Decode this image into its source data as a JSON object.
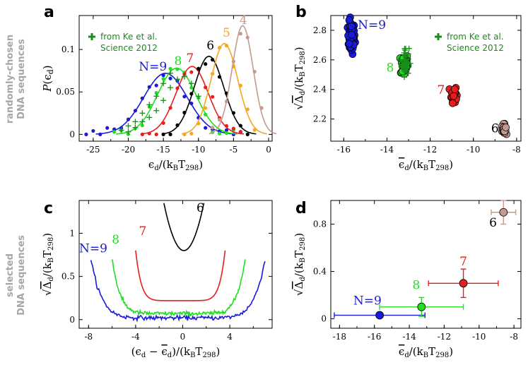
{
  "side_labels": {
    "top": [
      "randomly-chosen",
      "DNA sequences"
    ],
    "bottom": [
      "selected",
      "DNA sequences"
    ]
  },
  "colors": {
    "N9": "#1a1adb",
    "N8": "#22dd22",
    "N7": "#e61e1e",
    "N6": "#000000",
    "N5": "#f5a623",
    "N4": "#c49a8f",
    "ke": "#1a8c1a"
  },
  "chart_data": [
    {
      "panel": "a",
      "type": "line",
      "xlabel": "ϵd/(kBT298)",
      "ylabel": "P(ϵd)",
      "xlim": [
        -27,
        0.5
      ],
      "ylim": [
        -0.008,
        0.14
      ],
      "xticks": [
        -25,
        -20,
        -15,
        -10,
        -5,
        0
      ],
      "yticks": [
        0,
        0.05,
        0.1
      ],
      "ytick_labels": [
        "0",
        "0.05",
        "0.1"
      ],
      "legend": {
        "marker": "+",
        "text": [
          "from Ke et al.",
          "Science 2012"
        ]
      },
      "series": [
        {
          "name": "N=9",
          "color_key": "N9",
          "mu": -14.7,
          "sigma": 3.1,
          "amp": 0.072,
          "points_x": [
            -26,
            -25,
            -24,
            -23,
            -22,
            -21,
            -20,
            -19,
            -18,
            -17,
            -16,
            -15,
            -14,
            -13,
            -12,
            -11,
            -10,
            -9,
            -8,
            -7,
            -6,
            -5,
            -4
          ]
        },
        {
          "name": "8",
          "color_key": "N8",
          "mu": -13.1,
          "sigma": 2.7,
          "amp": 0.078,
          "points_x": [
            -22,
            -21,
            -20,
            -19,
            -18,
            -17,
            -16,
            -15,
            -14,
            -13,
            -12,
            -11,
            -10,
            -9,
            -8,
            -7,
            -6,
            -5
          ]
        },
        {
          "name": "7",
          "color_key": "N7",
          "mu": -10.9,
          "sigma": 2.3,
          "amp": 0.08,
          "points_x": [
            -18,
            -17,
            -16,
            -15,
            -14,
            -13,
            -12,
            -11,
            -10,
            -9,
            -8,
            -7,
            -6,
            -5,
            -4
          ]
        },
        {
          "name": "6",
          "color_key": "N6",
          "mu": -8.5,
          "sigma": 2.1,
          "amp": 0.092,
          "points_x": [
            -15,
            -14,
            -13,
            -12,
            -11,
            -10,
            -9,
            -8,
            -7,
            -6,
            -5,
            -4,
            -3
          ]
        },
        {
          "name": "5",
          "color_key": "N5",
          "mu": -6.3,
          "sigma": 1.9,
          "amp": 0.107,
          "points_x": [
            -12,
            -11,
            -10,
            -9,
            -8,
            -7,
            -6,
            -5,
            -4,
            -3,
            -2
          ]
        },
        {
          "name": "4",
          "color_key": "N4",
          "mu": -3.7,
          "sigma": 1.5,
          "amp": 0.128,
          "points_x": [
            -8,
            -7,
            -6,
            -5,
            -4,
            -3,
            -2,
            -1
          ]
        }
      ],
      "ke_data": [
        {
          "color_key": "N9",
          "x": [
            -21,
            -20,
            -19,
            -18,
            -17,
            -16,
            -15,
            -14
          ],
          "y": [
            0.005,
            0.01,
            0.015,
            0.025,
            0.035,
            0.045,
            0.06,
            0.072
          ]
        },
        {
          "color_key": "N8",
          "x": [
            -20,
            -19,
            -18,
            -17,
            -16,
            -15,
            -14,
            -13,
            -12,
            -11,
            -10
          ],
          "y": [
            0.003,
            0.008,
            0.015,
            0.02,
            0.028,
            0.04,
            0.055,
            0.065,
            0.068,
            0.06,
            0.045
          ]
        }
      ]
    },
    {
      "panel": "b",
      "type": "scatter",
      "xlabel": "ϵd/(kBT298)",
      "ylabel": "Δd/(kBT298)",
      "xlim": [
        -16.6,
        -7.8
      ],
      "ylim": [
        2.05,
        2.9
      ],
      "xticks": [
        -16,
        -14,
        -12,
        -10,
        -8
      ],
      "yticks": [
        2.2,
        2.4,
        2.6,
        2.8
      ],
      "ytick_labels": [
        "2.2",
        "2.4",
        "2.6",
        "2.8"
      ],
      "legend": {
        "marker": "+",
        "text": [
          "from Ke et al.",
          "Science 2012"
        ]
      },
      "clusters": [
        {
          "name": "N=9",
          "color_key": "N9",
          "x": -15.65,
          "y": 2.75,
          "spread_x": 0.14,
          "spread_y": 0.1,
          "count": 60
        },
        {
          "name": "8",
          "color_key": "N8",
          "x": -13.2,
          "y": 2.57,
          "spread_x": 0.14,
          "spread_y": 0.07,
          "count": 50
        },
        {
          "name": "7",
          "color_key": "N7",
          "x": -10.9,
          "y": 2.37,
          "spread_x": 0.1,
          "spread_y": 0.05,
          "count": 40
        },
        {
          "name": "6",
          "color_key": "N4",
          "x": -8.6,
          "y": 2.13,
          "spread_x": 0.08,
          "spread_y": 0.03,
          "count": 25
        }
      ],
      "ke_points": {
        "x": -13.15,
        "y": 2.59,
        "spread_x": 0.14,
        "spread_y": 0.1,
        "count": 40
      }
    },
    {
      "panel": "c",
      "type": "line",
      "xlabel": "(ϵd − ϵd)/(kBT298)",
      "ylabel": "Δd/(kBT298)",
      "xlim": [
        -8.8,
        7.6
      ],
      "ylim": [
        -0.1,
        1.38
      ],
      "xticks": [
        -8,
        -4,
        0,
        4
      ],
      "yticks": [
        0,
        0.5,
        1
      ],
      "ytick_labels": [
        "0",
        "0.5",
        "1"
      ],
      "series": [
        {
          "name": "N=9",
          "color_key": "N9",
          "x_range": [
            -7.8,
            7.0
          ],
          "y_min": 0.02,
          "y_edge": 0.7
        },
        {
          "name": "8",
          "color_key": "N8",
          "x_range": [
            -6.0,
            5.3
          ],
          "y_min": 0.07,
          "y_edge": 0.7
        },
        {
          "name": "7",
          "color_key": "N7",
          "x_range": [
            -4.0,
            3.6
          ],
          "y_min": 0.22,
          "y_edge": 0.8
        },
        {
          "name": "6",
          "color_key": "N6",
          "x_range": [
            -1.6,
            1.8
          ],
          "y_min": 0.8,
          "y_edge": 1.35
        }
      ]
    },
    {
      "panel": "d",
      "type": "scatter",
      "xlabel": "ϵd/(kBT298)",
      "ylabel": "Δd/(kBT298)",
      "xlim": [
        -18.5,
        -7.6
      ],
      "ylim": [
        -0.08,
        1.0
      ],
      "xticks": [
        -18,
        -16,
        -14,
        -12,
        -10,
        -8
      ],
      "yticks": [
        0,
        0.4,
        0.8
      ],
      "ytick_labels": [
        "0",
        "0.4",
        "0.8"
      ],
      "points": [
        {
          "name": "N=9",
          "color_key": "N9",
          "x": -15.7,
          "y": 0.03,
          "xerr": 2.6,
          "yerr": 0.02
        },
        {
          "name": "8",
          "color_key": "N8",
          "x": -13.3,
          "y": 0.1,
          "xerr": 2.4,
          "yerr": 0.08
        },
        {
          "name": "7",
          "color_key": "N7",
          "x": -10.9,
          "y": 0.3,
          "xerr": 2.0,
          "yerr": 0.12
        },
        {
          "name": "6",
          "color_key": "N4",
          "x": -8.6,
          "y": 0.9,
          "xerr": 0.7,
          "yerr": 0.1
        }
      ]
    }
  ]
}
